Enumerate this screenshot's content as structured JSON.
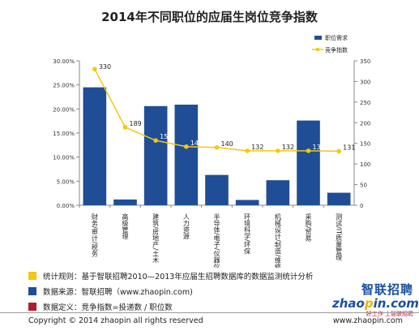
{
  "page": {
    "title": "2014年不同职位的应届生岗位竞争指数"
  },
  "chart_data": {
    "type": "bar",
    "categories": [
      "财务/审计/税务",
      "高级管理",
      "建筑/房地产/土木",
      "人力资源",
      "半导体/电子/仪器仪表",
      "环境科学/环保",
      "机械设计/制造/维修",
      "采购/贸易",
      "测试/IT质量管理"
    ],
    "series": [
      {
        "name": "职位需求",
        "type": "bar",
        "axis": "left",
        "values": [
          24.5,
          1.2,
          20.6,
          20.9,
          6.3,
          1.1,
          5.2,
          17.6,
          2.6
        ]
      },
      {
        "name": "竞争指数",
        "type": "line",
        "axis": "right",
        "values": [
          330,
          189,
          157,
          142,
          140,
          132,
          132,
          132,
          131
        ]
      }
    ],
    "left_axis": {
      "min": 0,
      "max": 30,
      "ticks": [
        "0.00%",
        "5.00%",
        "10.00%",
        "15.00%",
        "20.00%",
        "25.00%",
        "30.00%"
      ]
    },
    "right_axis": {
      "min": 0,
      "max": 350,
      "ticks": [
        "0",
        "50",
        "100",
        "150",
        "200",
        "250",
        "300",
        "350"
      ]
    },
    "legend_position": "top-right",
    "colors": {
      "bar": "#1f4e96",
      "line": "#f2c811"
    }
  },
  "notes": [
    {
      "color": "#f2c811",
      "text": "统计规则：基于智联招聘2010—2013年应届生招聘数据库的数据监测统计分析"
    },
    {
      "color": "#1f4e96",
      "text": "数据来源：智联招聘（www.zhaopin.com)"
    },
    {
      "color": "#b01c2e",
      "text": "数据定义：竞争指数=投递数 / 职位数"
    }
  ],
  "logo": {
    "cn": "智联招聘",
    "en_pre": "zhao",
    "en_dot": "p",
    "en_post": "in.com",
    "tagline": "好工作  上智联招聘"
  },
  "footer": {
    "copyright": "Copyright  ©  2014 zhaopin all rights reserved",
    "site": "www.zhaopin.com"
  }
}
